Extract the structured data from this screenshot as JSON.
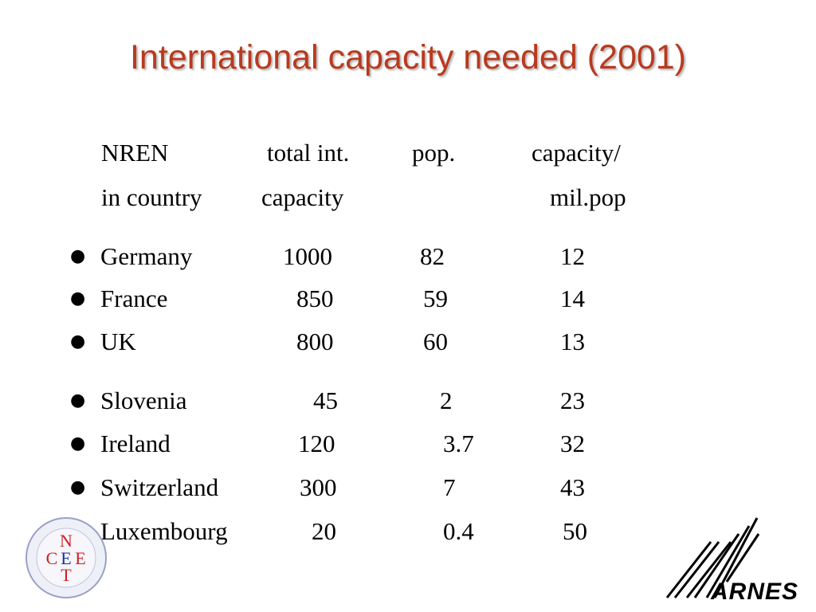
{
  "title": "International capacity needed (2001)",
  "header": {
    "row1": [
      "NREN",
      "total int.",
      "pop.",
      "capacity/"
    ],
    "row2": [
      "in country",
      "capacity",
      "",
      "mil.pop"
    ]
  },
  "rows": [
    {
      "country": "Germany",
      "capacity": "1000",
      "pop": "82",
      "per_mil": "12"
    },
    {
      "country": "France",
      "capacity": "850",
      "pop": "59",
      "per_mil": "14"
    },
    {
      "country": "UK",
      "capacity": "800",
      "pop": "60",
      "per_mil": "13"
    },
    {
      "country": "Slovenia",
      "capacity": "45",
      "pop": "2",
      "per_mil": "23"
    },
    {
      "country": "Ireland",
      "capacity": "120",
      "pop": "3.7",
      "per_mil": "32"
    },
    {
      "country": "Switzerland",
      "capacity": "300",
      "pop": "7",
      "per_mil": "43"
    },
    {
      "country": "Luxembourg",
      "capacity": "20",
      "pop": "0.4",
      "per_mil": "50"
    }
  ],
  "bullet_glyph": "●",
  "logos": {
    "ceenet": {
      "letters": [
        "N",
        "C",
        "E",
        "E",
        "T"
      ]
    },
    "arnes": {
      "text": "ARNES"
    }
  },
  "colors": {
    "title": "#b83a1e",
    "ceenet_red": "#d02020",
    "ceenet_blue": "#2030a0"
  }
}
